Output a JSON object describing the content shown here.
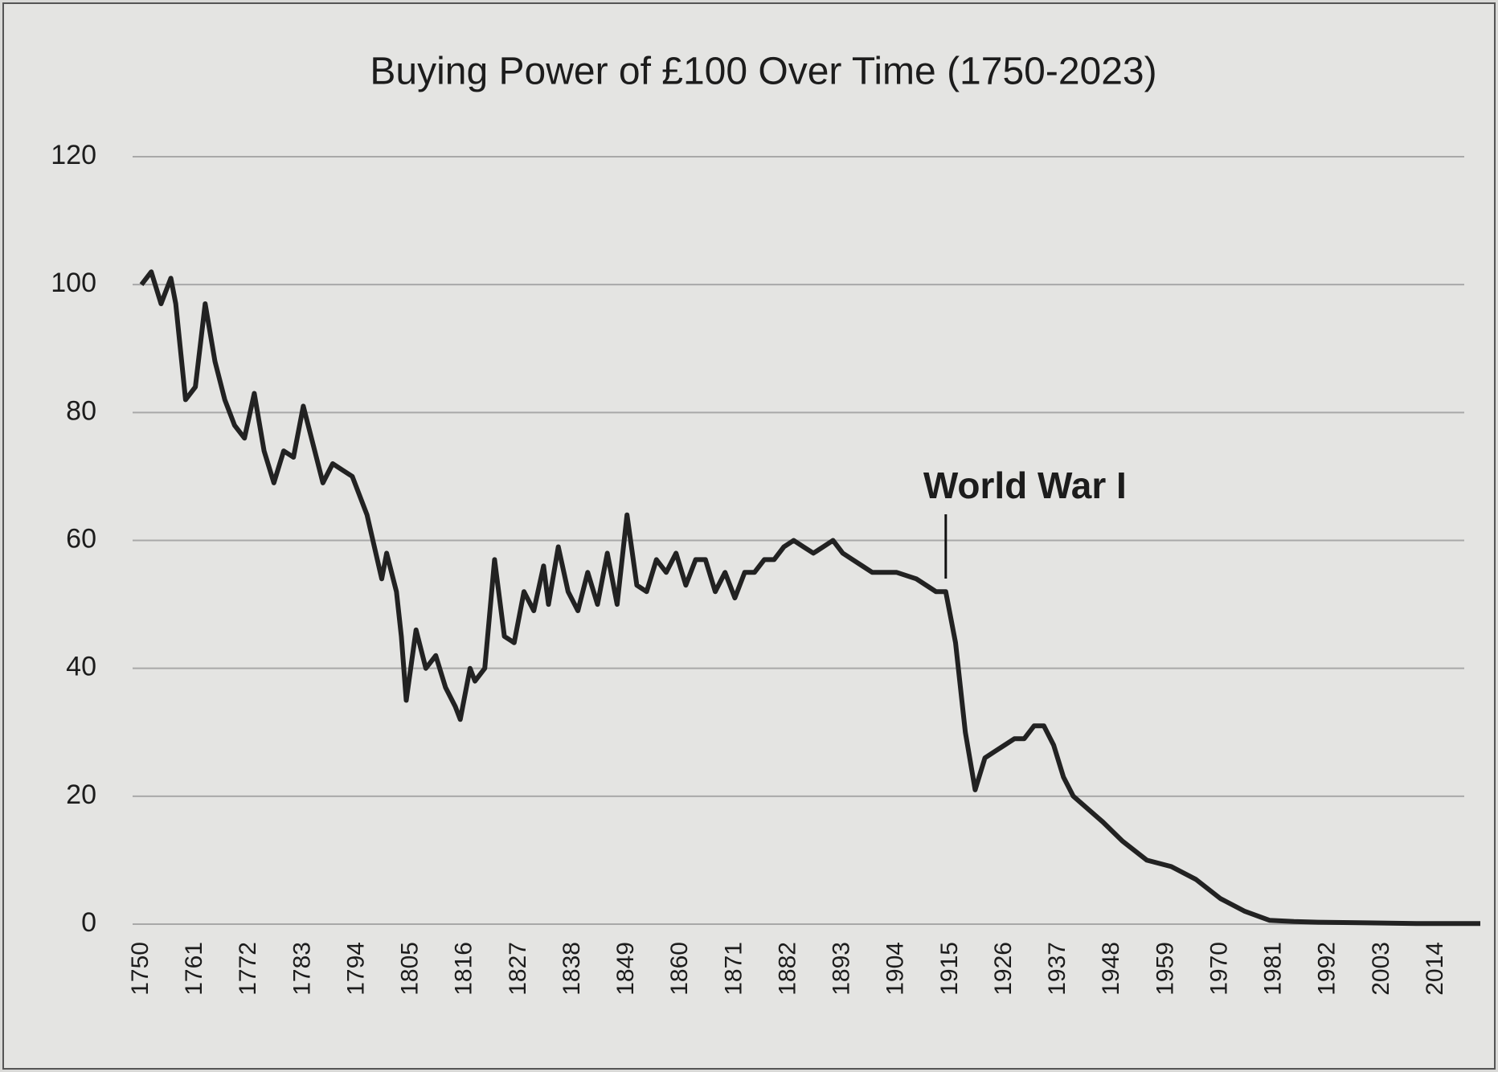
{
  "chart_data": {
    "type": "line",
    "title": "Buying Power of £100 Over Time (1750-2023)",
    "x": [
      1750,
      1752,
      1754,
      1756,
      1757,
      1759,
      1761,
      1763,
      1765,
      1767,
      1769,
      1771,
      1773,
      1775,
      1777,
      1779,
      1781,
      1783,
      1785,
      1787,
      1789,
      1791,
      1793,
      1796,
      1799,
      1800,
      1802,
      1803,
      1804,
      1806,
      1808,
      1810,
      1812,
      1814,
      1815,
      1817,
      1818,
      1820,
      1822,
      1824,
      1826,
      1828,
      1830,
      1832,
      1833,
      1835,
      1837,
      1839,
      1841,
      1843,
      1845,
      1847,
      1849,
      1851,
      1853,
      1855,
      1857,
      1859,
      1861,
      1863,
      1865,
      1867,
      1869,
      1871,
      1873,
      1875,
      1877,
      1879,
      1881,
      1883,
      1885,
      1887,
      1889,
      1891,
      1893,
      1895,
      1897,
      1899,
      1901,
      1904,
      1908,
      1912,
      1914,
      1916,
      1918,
      1920,
      1922,
      1924,
      1926,
      1928,
      1930,
      1932,
      1934,
      1936,
      1938,
      1940,
      1943,
      1946,
      1950,
      1955,
      1960,
      1965,
      1970,
      1975,
      1980,
      1985,
      1990,
      2000,
      2010,
      2023
    ],
    "values": [
      100,
      102,
      97,
      101,
      97,
      82,
      84,
      97,
      88,
      82,
      78,
      76,
      83,
      74,
      69,
      74,
      73,
      81,
      75,
      69,
      72,
      71,
      70,
      64,
      54,
      58,
      52,
      45,
      35,
      46,
      40,
      42,
      37,
      34,
      32,
      40,
      38,
      40,
      57,
      45,
      44,
      52,
      49,
      56,
      50,
      59,
      52,
      49,
      55,
      50,
      58,
      50,
      64,
      53,
      52,
      57,
      55,
      58,
      53,
      57,
      57,
      52,
      55,
      51,
      55,
      55,
      57,
      57,
      59,
      60,
      59,
      58,
      59,
      60,
      58,
      57,
      56,
      55,
      55,
      55,
      54,
      52,
      52,
      44,
      30,
      21,
      26,
      27,
      28,
      29,
      29,
      31,
      31,
      28,
      23,
      20,
      18,
      16,
      13,
      10,
      9,
      7,
      4,
      2,
      0.6,
      0.4,
      0.3,
      0.2,
      0.1,
      0.1
    ],
    "color": "#222222",
    "xlim": [
      1750,
      2023
    ],
    "xticks": [
      1750,
      1761,
      1772,
      1783,
      1794,
      1805,
      1816,
      1827,
      1838,
      1849,
      1860,
      1871,
      1882,
      1893,
      1904,
      1915,
      1926,
      1937,
      1948,
      1959,
      1970,
      1981,
      1992,
      2003,
      2014
    ],
    "ylim": [
      0,
      120
    ],
    "yticks": [
      0,
      20,
      40,
      60,
      80,
      100,
      120
    ],
    "grid": true,
    "annotations": [
      {
        "text": "World War I",
        "x": 1914
      }
    ]
  }
}
